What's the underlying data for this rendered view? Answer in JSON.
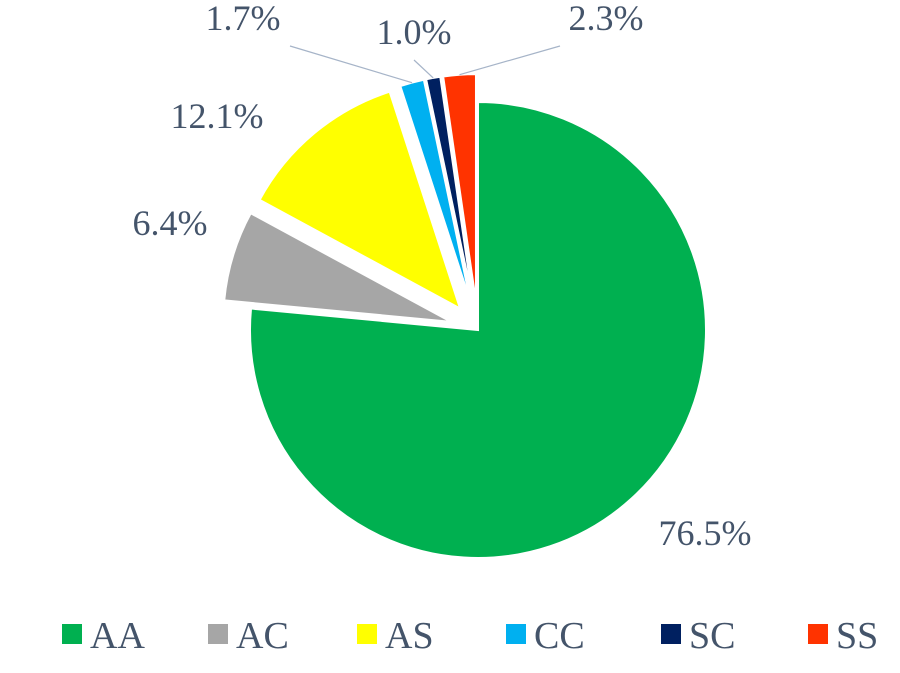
{
  "chart_data": {
    "type": "pie",
    "title": "",
    "legend_position": "bottom",
    "slices": [
      {
        "name": "AA",
        "value": 76.5,
        "label": "76.5%",
        "color": "#00b050"
      },
      {
        "name": "AC",
        "value": 6.4,
        "label": "6.4%",
        "color": "#a6a6a6"
      },
      {
        "name": "AS",
        "value": 12.1,
        "label": "12.1%",
        "color": "#ffff00"
      },
      {
        "name": "CC",
        "value": 1.7,
        "label": "1.7%",
        "color": "#00b0f0"
      },
      {
        "name": "SC",
        "value": 1.0,
        "label": "1.0%",
        "color": "#002060"
      },
      {
        "name": "SS",
        "value": 2.3,
        "label": "2.3%",
        "color": "#ff3300"
      }
    ]
  }
}
